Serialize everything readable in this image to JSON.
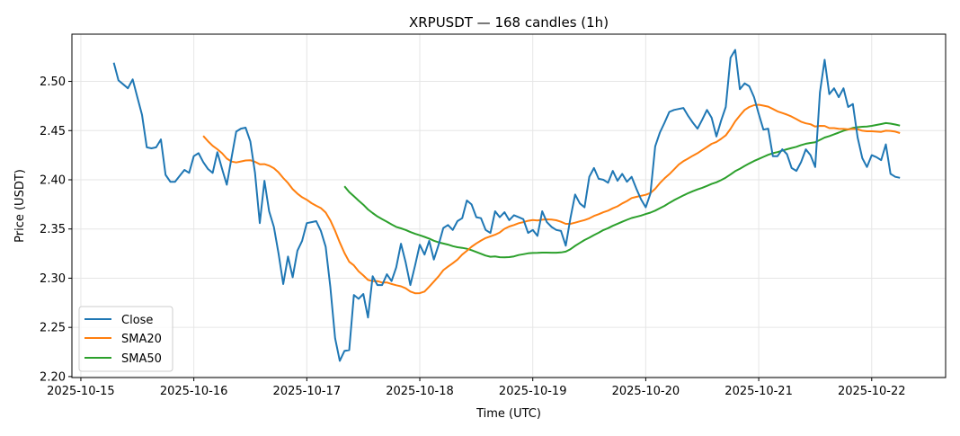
{
  "chart_data": {
    "type": "line",
    "title": "XRPUSDT — 168 candles (1h)",
    "xlabel": "Time (UTC)",
    "ylabel": "Price (USDT)",
    "ylim": [
      2.199,
      2.548
    ],
    "xlim_hours_from_first_tick": [
      -1.9,
      183.7
    ],
    "yticks": [
      "2.20",
      "2.25",
      "2.30",
      "2.35",
      "2.40",
      "2.45",
      "2.50"
    ],
    "xticks": [
      "2025-10-15",
      "2025-10-16",
      "2025-10-17",
      "2025-10-18",
      "2025-10-19",
      "2025-10-20",
      "2025-10-21",
      "2025-10-22"
    ],
    "grid": true,
    "legend_position": "lower-left",
    "start_hour_offset": 7,
    "interval_hours": 1,
    "series": [
      {
        "name": "Close",
        "color": "#1f77b4",
        "values": [
          2.519,
          2.501,
          2.497,
          2.493,
          2.502,
          2.484,
          2.466,
          2.433,
          2.432,
          2.433,
          2.441,
          2.405,
          2.398,
          2.398,
          2.404,
          2.41,
          2.407,
          2.424,
          2.427,
          2.418,
          2.411,
          2.407,
          2.428,
          2.411,
          2.395,
          2.422,
          2.449,
          2.452,
          2.453,
          2.439,
          2.407,
          2.356,
          2.399,
          2.368,
          2.352,
          2.325,
          2.294,
          2.322,
          2.301,
          2.328,
          2.338,
          2.356,
          2.357,
          2.358,
          2.348,
          2.332,
          2.291,
          2.239,
          2.216,
          2.226,
          2.227,
          2.283,
          2.279,
          2.284,
          2.26,
          2.302,
          2.293,
          2.293,
          2.304,
          2.297,
          2.311,
          2.335,
          2.316,
          2.293,
          2.313,
          2.334,
          2.324,
          2.338,
          2.319,
          2.334,
          2.351,
          2.354,
          2.349,
          2.358,
          2.361,
          2.379,
          2.375,
          2.362,
          2.361,
          2.349,
          2.346,
          2.368,
          2.362,
          2.367,
          2.359,
          2.364,
          2.362,
          2.36,
          2.346,
          2.349,
          2.343,
          2.368,
          2.357,
          2.352,
          2.349,
          2.348,
          2.333,
          2.361,
          2.385,
          2.376,
          2.372,
          2.403,
          2.412,
          2.401,
          2.4,
          2.397,
          2.409,
          2.399,
          2.406,
          2.398,
          2.403,
          2.391,
          2.38,
          2.372,
          2.386,
          2.434,
          2.448,
          2.458,
          2.469,
          2.471,
          2.472,
          2.473,
          2.465,
          2.458,
          2.452,
          2.461,
          2.471,
          2.463,
          2.444,
          2.46,
          2.474,
          2.524,
          2.532,
          2.492,
          2.498,
          2.495,
          2.484,
          2.467,
          2.451,
          2.452,
          2.424,
          2.424,
          2.431,
          2.426,
          2.412,
          2.409,
          2.418,
          2.431,
          2.425,
          2.413,
          2.489,
          2.522,
          2.487,
          2.493,
          2.484,
          2.493,
          2.474,
          2.477,
          2.443,
          2.422,
          2.413,
          2.425,
          2.423,
          2.42,
          2.436,
          2.406,
          2.403,
          2.402
        ]
      },
      {
        "name": "SMA20",
        "color": "#ff7f0e",
        "window": 20
      },
      {
        "name": "SMA50",
        "color": "#2ca02c",
        "window": 50
      }
    ]
  }
}
